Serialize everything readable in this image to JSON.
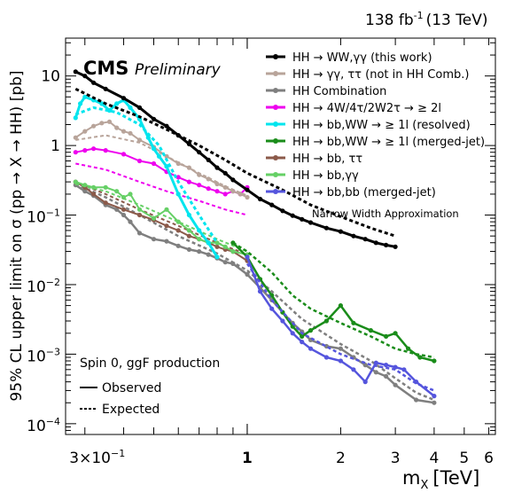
{
  "header": {
    "lumi": "138 fb",
    "lumi_exp": "-1",
    "energy": "(13 TeV)",
    "cms": "CMS",
    "preliminary": "Preliminary"
  },
  "annotations": {
    "nwa": "Narrow Width Approximation",
    "spin": "Spin 0, ggF production",
    "observed": "Observed",
    "expected": "Expected"
  },
  "chart_data": {
    "type": "line",
    "xlabel": "m",
    "xlabel_sub": "X",
    "xlabel_unit": "[TeV]",
    "ylabel": "95% CL upper limit on σ (pp → X → HH) [pb]",
    "xscale": "log",
    "yscale": "log",
    "xlim": [
      0.26,
      6.3
    ],
    "ylim": [
      7e-05,
      35
    ],
    "x_ticks": [
      {
        "v": 0.3,
        "label": "3×10",
        "sup": "−1"
      },
      {
        "v": 1,
        "label": "1",
        "bold": true
      },
      {
        "v": 2,
        "label": "2"
      },
      {
        "v": 3,
        "label": "3"
      },
      {
        "v": 4,
        "label": "4"
      },
      {
        "v": 5,
        "label": "5"
      },
      {
        "v": 6,
        "label": "6"
      }
    ],
    "y_ticks": [
      {
        "v": 10,
        "label": "10"
      },
      {
        "v": 1,
        "label": "1"
      },
      {
        "v": 0.1,
        "label": "10",
        "sup": "−1"
      },
      {
        "v": 0.01,
        "label": "10",
        "sup": "−2"
      },
      {
        "v": 0.001,
        "label": "10",
        "sup": "−3"
      },
      {
        "v": 0.0001,
        "label": "10",
        "sup": "−4"
      }
    ],
    "legend_position": "top-right",
    "series": [
      {
        "name": "HH → WW,γγ (this work)",
        "color": "#000000",
        "width": 3,
        "observed": [
          [
            0.28,
            11.5
          ],
          [
            0.3,
            10
          ],
          [
            0.32,
            8
          ],
          [
            0.35,
            6.5
          ],
          [
            0.4,
            4.8
          ],
          [
            0.45,
            3.5
          ],
          [
            0.5,
            2.4
          ],
          [
            0.55,
            1.9
          ],
          [
            0.6,
            1.4
          ],
          [
            0.65,
            1.05
          ],
          [
            0.7,
            0.8
          ],
          [
            0.75,
            0.62
          ],
          [
            0.8,
            0.48
          ],
          [
            0.85,
            0.4
          ],
          [
            0.9,
            0.32
          ],
          [
            1.0,
            0.23
          ],
          [
            1.1,
            0.17
          ],
          [
            1.2,
            0.14
          ],
          [
            1.3,
            0.115
          ],
          [
            1.4,
            0.098
          ],
          [
            1.5,
            0.087
          ],
          [
            1.6,
            0.078
          ],
          [
            1.8,
            0.065
          ],
          [
            2.0,
            0.058
          ],
          [
            2.2,
            0.05
          ],
          [
            2.4,
            0.045
          ],
          [
            2.6,
            0.04
          ],
          [
            2.8,
            0.037
          ],
          [
            3.0,
            0.035
          ]
        ],
        "expected": [
          [
            0.28,
            6.5
          ],
          [
            0.35,
            4
          ],
          [
            0.45,
            2.6
          ],
          [
            0.55,
            1.7
          ],
          [
            0.7,
            1.0
          ],
          [
            0.85,
            0.62
          ],
          [
            1.0,
            0.4
          ],
          [
            1.3,
            0.23
          ],
          [
            1.6,
            0.14
          ],
          [
            2.0,
            0.095
          ],
          [
            2.5,
            0.065
          ],
          [
            3.0,
            0.05
          ]
        ]
      },
      {
        "name": "HH → γγ, ττ (not in HH Comb.)",
        "color": "#b8a49a",
        "width": 2,
        "observed": [
          [
            0.28,
            1.3
          ],
          [
            0.3,
            1.6
          ],
          [
            0.32,
            1.9
          ],
          [
            0.34,
            2.1
          ],
          [
            0.36,
            2.2
          ],
          [
            0.38,
            1.8
          ],
          [
            0.4,
            1.6
          ],
          [
            0.42,
            1.5
          ],
          [
            0.45,
            1.2
          ],
          [
            0.5,
            0.95
          ],
          [
            0.55,
            0.7
          ],
          [
            0.6,
            0.55
          ],
          [
            0.65,
            0.48
          ],
          [
            0.7,
            0.38
          ],
          [
            0.75,
            0.33
          ],
          [
            0.8,
            0.28
          ],
          [
            0.85,
            0.25
          ],
          [
            0.9,
            0.22
          ],
          [
            0.95,
            0.2
          ],
          [
            1.0,
            0.18
          ]
        ],
        "expected": [
          [
            0.28,
            1.2
          ],
          [
            0.35,
            1.4
          ],
          [
            0.45,
            1.1
          ],
          [
            0.55,
            0.7
          ],
          [
            0.7,
            0.4
          ],
          [
            0.85,
            0.26
          ],
          [
            1.0,
            0.19
          ]
        ]
      },
      {
        "name": "HH Combination",
        "color": "#7f7f7f",
        "width": 2.5,
        "observed": [
          [
            0.28,
            0.27
          ],
          [
            0.3,
            0.22
          ],
          [
            0.32,
            0.19
          ],
          [
            0.35,
            0.14
          ],
          [
            0.38,
            0.12
          ],
          [
            0.4,
            0.1
          ],
          [
            0.42,
            0.08
          ],
          [
            0.45,
            0.055
          ],
          [
            0.5,
            0.045
          ],
          [
            0.55,
            0.042
          ],
          [
            0.6,
            0.036
          ],
          [
            0.65,
            0.032
          ],
          [
            0.7,
            0.03
          ],
          [
            0.75,
            0.027
          ],
          [
            0.8,
            0.024
          ],
          [
            0.85,
            0.021
          ],
          [
            0.9,
            0.02
          ],
          [
            1.0,
            0.014
          ],
          [
            1.1,
            0.009
          ],
          [
            1.2,
            0.006
          ],
          [
            1.3,
            0.004
          ],
          [
            1.4,
            0.0028
          ],
          [
            1.5,
            0.0021
          ],
          [
            1.6,
            0.0016
          ],
          [
            1.8,
            0.0013
          ],
          [
            2.0,
            0.0012
          ],
          [
            2.2,
            0.0009
          ],
          [
            2.4,
            0.0007
          ],
          [
            2.6,
            0.00055
          ],
          [
            2.8,
            0.00048
          ],
          [
            3.0,
            0.00036
          ],
          [
            3.5,
            0.00022
          ],
          [
            4.0,
            0.0002
          ]
        ],
        "expected": [
          [
            0.28,
            0.28
          ],
          [
            0.35,
            0.18
          ],
          [
            0.45,
            0.1
          ],
          [
            0.6,
            0.05
          ],
          [
            0.8,
            0.028
          ],
          [
            1.0,
            0.016
          ],
          [
            1.2,
            0.008
          ],
          [
            1.5,
            0.0032
          ],
          [
            2.0,
            0.0014
          ],
          [
            2.5,
            0.0008
          ],
          [
            3.0,
            0.00045
          ],
          [
            3.5,
            0.00028
          ],
          [
            4.0,
            0.00022
          ]
        ]
      },
      {
        "name": "HH → 4W/4τ/2W2τ → ≥ 2l",
        "color": "#ee00ee",
        "width": 2,
        "observed": [
          [
            0.28,
            0.8
          ],
          [
            0.3,
            0.85
          ],
          [
            0.32,
            0.9
          ],
          [
            0.35,
            0.85
          ],
          [
            0.4,
            0.75
          ],
          [
            0.45,
            0.6
          ],
          [
            0.5,
            0.55
          ],
          [
            0.55,
            0.42
          ],
          [
            0.6,
            0.35
          ],
          [
            0.65,
            0.3
          ],
          [
            0.7,
            0.27
          ],
          [
            0.75,
            0.24
          ],
          [
            0.8,
            0.22
          ],
          [
            0.85,
            0.2
          ],
          [
            0.9,
            0.22
          ],
          [
            0.95,
            0.2
          ],
          [
            1.0,
            0.25
          ]
        ],
        "expected": [
          [
            0.28,
            0.55
          ],
          [
            0.35,
            0.45
          ],
          [
            0.45,
            0.3
          ],
          [
            0.55,
            0.22
          ],
          [
            0.7,
            0.16
          ],
          [
            0.85,
            0.12
          ],
          [
            1.0,
            0.1
          ]
        ]
      },
      {
        "name": "HH → bb,WW → ≥ 1l (resolved)",
        "color": "#00e5ee",
        "width": 3,
        "observed": [
          [
            0.28,
            2.5
          ],
          [
            0.29,
            4
          ],
          [
            0.3,
            5
          ],
          [
            0.32,
            4.5
          ],
          [
            0.34,
            4
          ],
          [
            0.36,
            3.2
          ],
          [
            0.38,
            4
          ],
          [
            0.4,
            4.5
          ],
          [
            0.42,
            3.5
          ],
          [
            0.45,
            2.4
          ],
          [
            0.48,
            1.3
          ],
          [
            0.5,
            0.9
          ],
          [
            0.52,
            0.7
          ],
          [
            0.55,
            0.5
          ],
          [
            0.6,
            0.2
          ],
          [
            0.65,
            0.1
          ],
          [
            0.7,
            0.06
          ],
          [
            0.75,
            0.04
          ],
          [
            0.8,
            0.025
          ]
        ],
        "expected": [
          [
            0.28,
            2.8
          ],
          [
            0.32,
            3.5
          ],
          [
            0.38,
            3.0
          ],
          [
            0.45,
            2.0
          ],
          [
            0.52,
            1.0
          ],
          [
            0.6,
            0.3
          ],
          [
            0.7,
            0.1
          ],
          [
            0.8,
            0.04
          ]
        ]
      },
      {
        "name": "HH → bb,WW → ≥ 1l (merged-jet)",
        "color": "#1a8c1a",
        "width": 2.5,
        "observed": [
          [
            0.9,
            0.04
          ],
          [
            1.0,
            0.025
          ],
          [
            1.1,
            0.012
          ],
          [
            1.2,
            0.007
          ],
          [
            1.3,
            0.004
          ],
          [
            1.4,
            0.0025
          ],
          [
            1.5,
            0.0018
          ],
          [
            1.6,
            0.0022
          ],
          [
            1.8,
            0.003
          ],
          [
            2.0,
            0.005
          ],
          [
            2.2,
            0.0028
          ],
          [
            2.5,
            0.0022
          ],
          [
            2.8,
            0.0018
          ],
          [
            3.0,
            0.002
          ],
          [
            3.3,
            0.0012
          ],
          [
            3.6,
            0.0009
          ],
          [
            4.0,
            0.0008
          ]
        ],
        "expected": [
          [
            0.9,
            0.04
          ],
          [
            1.0,
            0.03
          ],
          [
            1.2,
            0.015
          ],
          [
            1.4,
            0.007
          ],
          [
            1.6,
            0.0045
          ],
          [
            2.0,
            0.0028
          ],
          [
            2.5,
            0.0018
          ],
          [
            3.0,
            0.0012
          ],
          [
            3.5,
            0.001
          ],
          [
            4.0,
            0.0009
          ]
        ]
      },
      {
        "name": "HH → bb, ττ",
        "color": "#8b5a4a",
        "width": 2,
        "observed": [
          [
            0.28,
            0.3
          ],
          [
            0.3,
            0.25
          ],
          [
            0.32,
            0.2
          ],
          [
            0.35,
            0.15
          ],
          [
            0.4,
            0.12
          ],
          [
            0.45,
            0.1
          ],
          [
            0.5,
            0.085
          ],
          [
            0.55,
            0.07
          ],
          [
            0.6,
            0.06
          ],
          [
            0.65,
            0.05
          ],
          [
            0.7,
            0.045
          ],
          [
            0.75,
            0.04
          ],
          [
            0.8,
            0.035
          ],
          [
            0.85,
            0.032
          ],
          [
            0.9,
            0.03
          ],
          [
            1.0,
            0.022
          ]
        ],
        "expected": [
          [
            0.28,
            0.3
          ],
          [
            0.35,
            0.2
          ],
          [
            0.45,
            0.12
          ],
          [
            0.6,
            0.07
          ],
          [
            0.8,
            0.04
          ],
          [
            1.0,
            0.027
          ]
        ]
      },
      {
        "name": "HH → bb,γγ",
        "color": "#66d066",
        "width": 2,
        "observed": [
          [
            0.28,
            0.3
          ],
          [
            0.3,
            0.27
          ],
          [
            0.32,
            0.25
          ],
          [
            0.35,
            0.25
          ],
          [
            0.38,
            0.22
          ],
          [
            0.4,
            0.18
          ],
          [
            0.42,
            0.2
          ],
          [
            0.45,
            0.12
          ],
          [
            0.5,
            0.09
          ],
          [
            0.55,
            0.12
          ],
          [
            0.6,
            0.08
          ],
          [
            0.65,
            0.06
          ],
          [
            0.7,
            0.045
          ],
          [
            0.75,
            0.04
          ],
          [
            0.8,
            0.04
          ],
          [
            0.85,
            0.035
          ],
          [
            0.9,
            0.03
          ],
          [
            1.0,
            0.027
          ]
        ],
        "expected": [
          [
            0.28,
            0.28
          ],
          [
            0.35,
            0.22
          ],
          [
            0.45,
            0.14
          ],
          [
            0.6,
            0.08
          ],
          [
            0.8,
            0.045
          ],
          [
            1.0,
            0.03
          ]
        ]
      },
      {
        "name": "HH → bb,bb (merged-jet)",
        "color": "#5555dd",
        "width": 2.5,
        "observed": [
          [
            1.0,
            0.025
          ],
          [
            1.1,
            0.008
          ],
          [
            1.2,
            0.0045
          ],
          [
            1.3,
            0.003
          ],
          [
            1.4,
            0.002
          ],
          [
            1.5,
            0.0015
          ],
          [
            1.6,
            0.0012
          ],
          [
            1.8,
            0.0009
          ],
          [
            2.0,
            0.0008
          ],
          [
            2.2,
            0.0006
          ],
          [
            2.4,
            0.0004
          ],
          [
            2.6,
            0.00075
          ],
          [
            2.8,
            0.0007
          ],
          [
            3.0,
            0.00065
          ],
          [
            3.2,
            0.0006
          ],
          [
            3.5,
            0.0004
          ],
          [
            4.0,
            0.00025
          ]
        ],
        "expected": [
          [
            1.0,
            0.02
          ],
          [
            1.2,
            0.006
          ],
          [
            1.5,
            0.002
          ],
          [
            2.0,
            0.001
          ],
          [
            2.5,
            0.0007
          ],
          [
            3.0,
            0.0006
          ],
          [
            3.5,
            0.00038
          ],
          [
            4.0,
            0.0003
          ]
        ]
      }
    ]
  }
}
